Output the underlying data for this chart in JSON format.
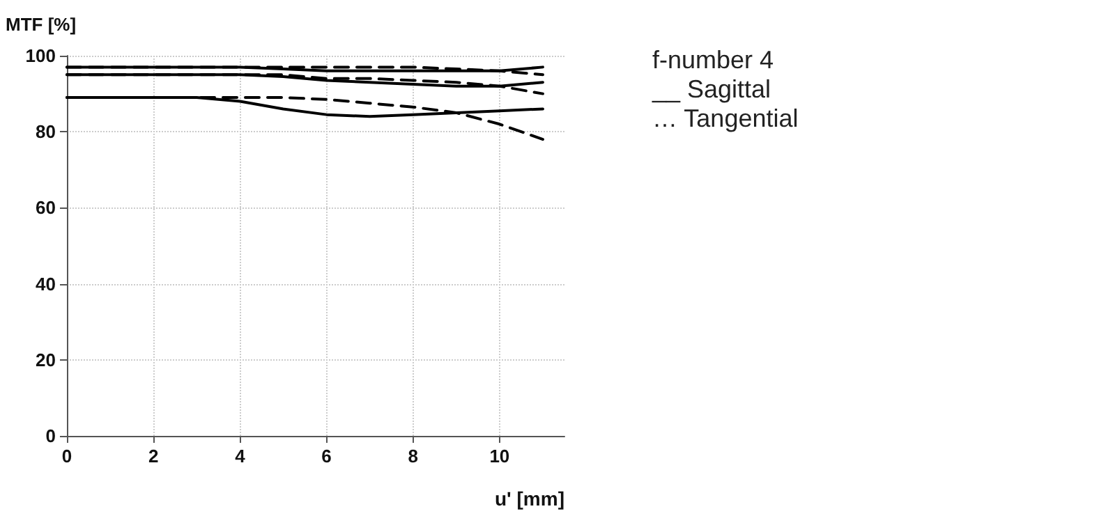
{
  "chart_data": {
    "type": "line",
    "xlabel": "u' [mm]",
    "ylabel": "MTF [%]",
    "annotations": [
      "f-number 4",
      "__ Sagittal",
      "… Tangential"
    ],
    "x": [
      0,
      1,
      2,
      3,
      4,
      5,
      6,
      7,
      8,
      9,
      10,
      11
    ],
    "series": [
      {
        "color": "#000000",
        "line_style": "solid",
        "values": [
          97,
          97,
          97,
          97,
          97,
          96.5,
          96,
          96,
          96,
          96,
          96,
          97
        ]
      },
      {
        "color": "#000000",
        "line_style": "solid",
        "values": [
          95,
          95,
          95,
          95,
          95,
          94.5,
          93.5,
          93,
          92.5,
          92,
          92,
          93
        ]
      },
      {
        "color": "#000000",
        "line_style": "solid",
        "values": [
          89,
          89,
          89,
          89,
          88,
          86,
          84.5,
          84,
          84.5,
          85,
          85.5,
          86
        ]
      },
      {
        "color": "#000000",
        "line_style": "dashed",
        "values": [
          97,
          97,
          97,
          97,
          97,
          97,
          97,
          97,
          97,
          96.5,
          96,
          95
        ]
      },
      {
        "color": "#000000",
        "line_style": "dashed",
        "values": [
          95,
          95,
          95,
          95,
          95,
          95,
          94,
          94,
          93.5,
          93,
          92,
          90
        ]
      },
      {
        "color": "#000000",
        "line_style": "dashed",
        "values": [
          89,
          89,
          89,
          89,
          89,
          89,
          88.5,
          87.5,
          86.5,
          85,
          82,
          78
        ]
      }
    ],
    "xlim": [
      0,
      11.5
    ],
    "xticks": [
      0,
      2,
      4,
      6,
      8,
      10
    ],
    "ylim": [
      0,
      100
    ],
    "yticks": [
      0,
      20,
      40,
      60,
      80,
      100
    ],
    "grid": true,
    "marker": "none"
  }
}
